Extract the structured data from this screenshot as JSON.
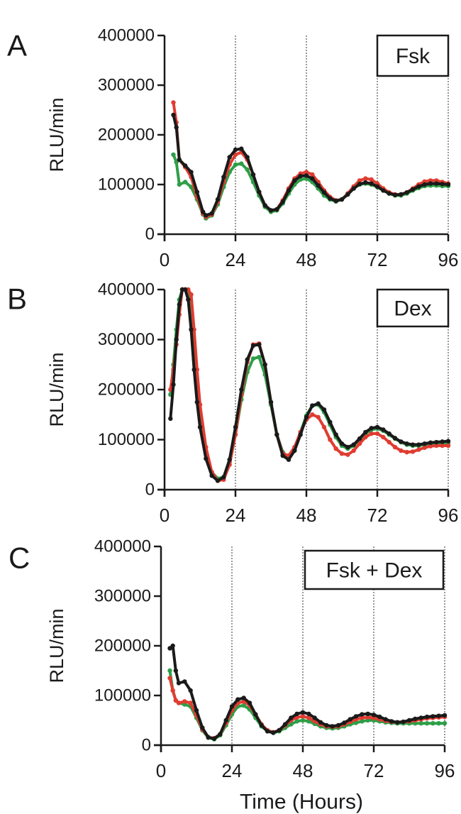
{
  "figure": {
    "xlabel": "Time (Hours)"
  },
  "chart_data": [
    {
      "type": "scatter",
      "panel_label": "A",
      "legend_label": "Fsk",
      "ylabel": "RLU/min",
      "xlabel": "",
      "xlim": [
        0,
        96
      ],
      "ylim": [
        0,
        400000
      ],
      "x_ticks": [
        "0",
        "24",
        "48",
        "72",
        "96"
      ],
      "y_ticks": [
        "0",
        "100000",
        "200000",
        "300000",
        "400000"
      ],
      "vertical_gridlines": [
        24,
        48,
        72,
        96
      ],
      "legend_placement": "top-right",
      "series_colors": [
        "#2e9e48",
        "#e03c31",
        "#1a1a1a"
      ],
      "series": [
        {
          "x": [
            3,
            4,
            5,
            7,
            9,
            11,
            13,
            14,
            16,
            18,
            20,
            22,
            24,
            26,
            28,
            30,
            32,
            34,
            36,
            38,
            40,
            42,
            44,
            46,
            48,
            50,
            52,
            54,
            56,
            58,
            60,
            62,
            64,
            66,
            68,
            70,
            72,
            74,
            76,
            78,
            80,
            82,
            84,
            86,
            88,
            90,
            92,
            94,
            96
          ],
          "y": [
            160000,
            145000,
            100000,
            105000,
            95000,
            70000,
            40000,
            32000,
            38000,
            60000,
            95000,
            125000,
            140000,
            142000,
            130000,
            105000,
            78000,
            55000,
            45000,
            48000,
            62000,
            82000,
            100000,
            110000,
            112000,
            105000,
            92000,
            78000,
            70000,
            66000,
            70000,
            80000,
            92000,
            100000,
            102000,
            100000,
            95000,
            88000,
            82000,
            78000,
            78000,
            82000,
            88000,
            93000,
            97000,
            98000,
            98000,
            97000,
            97000
          ]
        },
        {
          "x": [
            3,
            4,
            5,
            7,
            9,
            11,
            13,
            14,
            16,
            18,
            20,
            22,
            24,
            26,
            28,
            30,
            32,
            34,
            36,
            38,
            40,
            42,
            44,
            46,
            48,
            50,
            52,
            54,
            56,
            58,
            60,
            62,
            64,
            66,
            68,
            70,
            72,
            74,
            76,
            78,
            80,
            82,
            84,
            86,
            88,
            90,
            92,
            94,
            96
          ],
          "y": [
            265000,
            225000,
            150000,
            135000,
            115000,
            75000,
            42000,
            35000,
            40000,
            65000,
            105000,
            140000,
            160000,
            165000,
            150000,
            120000,
            85000,
            58000,
            48000,
            50000,
            68000,
            92000,
            112000,
            122000,
            125000,
            120000,
            105000,
            88000,
            75000,
            68000,
            70000,
            82000,
            96000,
            108000,
            112000,
            110000,
            102000,
            92000,
            84000,
            80000,
            80000,
            84000,
            92000,
            100000,
            106000,
            108000,
            108000,
            105000,
            102000
          ]
        },
        {
          "x": [
            3,
            4,
            5,
            7,
            9,
            11,
            13,
            14,
            16,
            18,
            20,
            22,
            24,
            26,
            28,
            30,
            32,
            34,
            36,
            38,
            40,
            42,
            44,
            46,
            48,
            50,
            52,
            54,
            56,
            58,
            60,
            62,
            64,
            66,
            68,
            70,
            72,
            74,
            76,
            78,
            80,
            82,
            84,
            86,
            88,
            90,
            92,
            94,
            96
          ],
          "y": [
            240000,
            215000,
            150000,
            138000,
            125000,
            85000,
            45000,
            38000,
            42000,
            70000,
            115000,
            155000,
            170000,
            172000,
            155000,
            120000,
            85000,
            58000,
            48000,
            50000,
            65000,
            88000,
            108000,
            117000,
            118000,
            112000,
            98000,
            84000,
            72000,
            67000,
            70000,
            80000,
            92000,
            101000,
            104000,
            102000,
            96000,
            88000,
            82000,
            79000,
            80000,
            84000,
            90000,
            96000,
            100000,
            102000,
            102000,
            101000,
            100000
          ]
        }
      ]
    },
    {
      "type": "scatter",
      "panel_label": "B",
      "legend_label": "Dex",
      "ylabel": "RLU/min",
      "xlabel": "",
      "xlim": [
        0,
        96
      ],
      "ylim": [
        0,
        400000
      ],
      "x_ticks": [
        "0",
        "24",
        "48",
        "72",
        "96"
      ],
      "y_ticks": [
        "0",
        "100000",
        "200000",
        "300000",
        "400000"
      ],
      "vertical_gridlines": [
        24,
        48,
        72,
        96
      ],
      "legend_placement": "top-right",
      "series_colors": [
        "#2e9e48",
        "#e03c31",
        "#1a1a1a"
      ],
      "series": [
        {
          "x": [
            2,
            3,
            4,
            5,
            6,
            7,
            8,
            9,
            10,
            11,
            12,
            14,
            16,
            18,
            20,
            22,
            24,
            26,
            28,
            30,
            32,
            34,
            36,
            38,
            40,
            42,
            44,
            46,
            48,
            50,
            52,
            54,
            56,
            58,
            60,
            62,
            64,
            66,
            68,
            70,
            72,
            74,
            76,
            78,
            80,
            82,
            84,
            86,
            88,
            90,
            92,
            94,
            96
          ],
          "y": [
            190000,
            250000,
            320000,
            380000,
            400000,
            400000,
            395000,
            340000,
            260000,
            195000,
            140000,
            75000,
            35000,
            22000,
            25000,
            55000,
            110000,
            180000,
            235000,
            262000,
            265000,
            230000,
            170000,
            110000,
            75000,
            65000,
            80000,
            115000,
            148000,
            168000,
            170000,
            155000,
            130000,
            105000,
            88000,
            82000,
            88000,
            100000,
            112000,
            120000,
            122000,
            118000,
            110000,
            102000,
            95000,
            90000,
            88000,
            88000,
            90000,
            92000,
            92000,
            92000,
            92000
          ]
        },
        {
          "x": [
            2,
            3,
            4,
            5,
            6,
            7,
            8,
            9,
            10,
            11,
            12,
            14,
            16,
            18,
            20,
            22,
            24,
            26,
            28,
            30,
            32,
            34,
            36,
            38,
            40,
            42,
            44,
            46,
            48,
            50,
            52,
            54,
            56,
            58,
            60,
            62,
            64,
            66,
            68,
            70,
            72,
            74,
            76,
            78,
            80,
            82,
            84,
            86,
            88,
            90,
            92,
            94,
            96
          ],
          "y": [
            200000,
            240000,
            290000,
            350000,
            400000,
            400000,
            400000,
            390000,
            320000,
            240000,
            170000,
            85000,
            35000,
            18000,
            20000,
            50000,
            110000,
            190000,
            255000,
            290000,
            292000,
            250000,
            175000,
            110000,
            72000,
            68000,
            85000,
            115000,
            140000,
            150000,
            145000,
            125000,
            100000,
            82000,
            72000,
            70000,
            78000,
            92000,
            105000,
            112000,
            112000,
            105000,
            95000,
            85000,
            78000,
            75000,
            76000,
            80000,
            84000,
            87000,
            88000,
            88000,
            88000
          ]
        },
        {
          "x": [
            2,
            3,
            4,
            5,
            6,
            7,
            8,
            9,
            10,
            11,
            12,
            14,
            16,
            18,
            20,
            22,
            24,
            26,
            28,
            30,
            32,
            34,
            36,
            38,
            40,
            42,
            44,
            46,
            48,
            50,
            52,
            54,
            56,
            58,
            60,
            62,
            64,
            66,
            68,
            70,
            72,
            74,
            76,
            78,
            80,
            82,
            84,
            86,
            88,
            90,
            92,
            94,
            96
          ],
          "y": [
            142000,
            210000,
            300000,
            370000,
            400000,
            400000,
            380000,
            320000,
            240000,
            175000,
            125000,
            62000,
            28000,
            18000,
            25000,
            60000,
            125000,
            200000,
            260000,
            288000,
            290000,
            250000,
            175000,
            110000,
            68000,
            60000,
            78000,
            110000,
            145000,
            168000,
            172000,
            160000,
            135000,
            110000,
            92000,
            85000,
            90000,
            102000,
            115000,
            123000,
            125000,
            120000,
            112000,
            103000,
            96000,
            92000,
            90000,
            90000,
            92000,
            94000,
            95000,
            96000,
            97000
          ]
        }
      ]
    },
    {
      "type": "scatter",
      "panel_label": "C",
      "legend_label": "Fsk + Dex",
      "ylabel": "RLU/min",
      "xlabel": "Time (Hours)",
      "xlim": [
        0,
        96
      ],
      "ylim": [
        0,
        400000
      ],
      "x_ticks": [
        "0",
        "24",
        "48",
        "72",
        "96"
      ],
      "y_ticks": [
        "0",
        "100000",
        "200000",
        "300000",
        "400000"
      ],
      "vertical_gridlines": [
        24,
        48,
        72,
        96
      ],
      "legend_placement": "top-right",
      "series_colors": [
        "#2e9e48",
        "#e03c31",
        "#1a1a1a"
      ],
      "series": [
        {
          "x": [
            3,
            4,
            5,
            6,
            8,
            10,
            12,
            14,
            16,
            18,
            20,
            22,
            24,
            26,
            28,
            30,
            32,
            34,
            36,
            38,
            40,
            42,
            44,
            46,
            48,
            50,
            52,
            54,
            56,
            58,
            60,
            62,
            64,
            66,
            68,
            70,
            72,
            74,
            76,
            78,
            80,
            82,
            84,
            86,
            88,
            90,
            92,
            94,
            96
          ],
          "y": [
            150000,
            110000,
            90000,
            85000,
            82000,
            78000,
            55000,
            30000,
            15000,
            12000,
            20000,
            40000,
            62000,
            78000,
            80000,
            72000,
            55000,
            38000,
            28000,
            25000,
            28000,
            35000,
            42000,
            48000,
            50000,
            48000,
            43000,
            38000,
            35000,
            34000,
            35000,
            38000,
            42000,
            45000,
            48000,
            50000,
            50000,
            48000,
            46000,
            45000,
            44000,
            44000,
            44000,
            44000,
            44000,
            44000,
            44000,
            44000,
            44000
          ]
        },
        {
          "x": [
            3,
            4,
            5,
            6,
            8,
            10,
            12,
            14,
            16,
            18,
            20,
            22,
            24,
            26,
            28,
            30,
            32,
            34,
            36,
            38,
            40,
            42,
            44,
            46,
            48,
            50,
            52,
            54,
            56,
            58,
            60,
            62,
            64,
            66,
            68,
            70,
            72,
            74,
            76,
            78,
            80,
            82,
            84,
            86,
            88,
            90,
            92,
            94,
            96
          ],
          "y": [
            135000,
            110000,
            90000,
            85000,
            88000,
            85000,
            60000,
            32000,
            16000,
            14000,
            22000,
            45000,
            70000,
            85000,
            88000,
            80000,
            62000,
            42000,
            30000,
            26000,
            30000,
            40000,
            50000,
            56000,
            58000,
            55000,
            48000,
            42000,
            38000,
            37000,
            38000,
            42000,
            47000,
            52000,
            55000,
            56000,
            55000,
            52000,
            49000,
            47000,
            46000,
            47000,
            48000,
            50000,
            52000,
            54000,
            55000,
            56000,
            57000
          ]
        },
        {
          "x": [
            3,
            4,
            5,
            6,
            8,
            10,
            12,
            14,
            16,
            18,
            20,
            22,
            24,
            26,
            28,
            30,
            32,
            34,
            36,
            38,
            40,
            42,
            44,
            46,
            48,
            50,
            52,
            54,
            56,
            58,
            60,
            62,
            64,
            66,
            68,
            70,
            72,
            74,
            76,
            78,
            80,
            82,
            84,
            86,
            88,
            90,
            92,
            94,
            96
          ],
          "y": [
            195000,
            200000,
            150000,
            125000,
            128000,
            110000,
            70000,
            35000,
            16000,
            13000,
            22000,
            50000,
            78000,
            92000,
            95000,
            85000,
            62000,
            40000,
            28000,
            25000,
            30000,
            42000,
            55000,
            63000,
            66000,
            63000,
            55000,
            46000,
            40000,
            38000,
            40000,
            45000,
            52000,
            58000,
            62000,
            63000,
            61000,
            57000,
            52000,
            48000,
            46000,
            47000,
            50000,
            53000,
            55000,
            57000,
            58000,
            59000,
            60000
          ]
        }
      ]
    }
  ]
}
